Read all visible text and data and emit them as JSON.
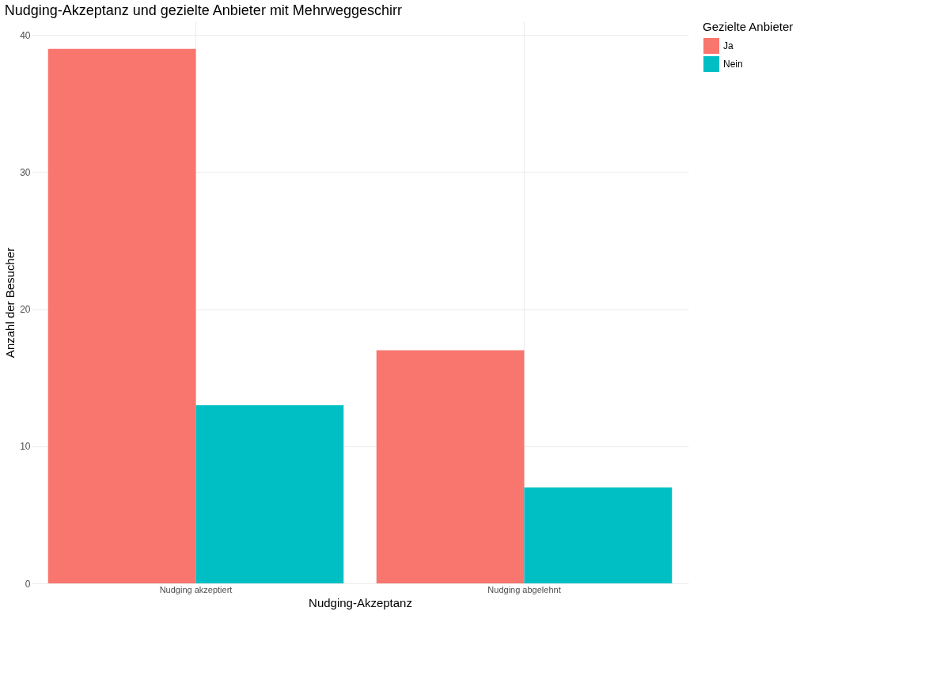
{
  "chart_data": {
    "type": "bar",
    "title": "Nudging-Akzeptanz und gezielte Anbieter mit Mehrweggeschirr",
    "xlabel": "Nudging-Akzeptanz",
    "ylabel": "Anzahl der Besucher",
    "legend_title": "Gezielte Anbieter",
    "categories": [
      "Nudging akzeptiert",
      "Nudging abgelehnt"
    ],
    "series": [
      {
        "name": "Ja",
        "color": "#f8766d",
        "values": [
          39,
          17
        ]
      },
      {
        "name": "Nein",
        "color": "#00bfc4",
        "values": [
          13,
          7
        ]
      }
    ],
    "ylim": [
      0,
      41
    ],
    "yticks": [
      0,
      10,
      20,
      30,
      40
    ],
    "grid": true,
    "legend": "right"
  }
}
